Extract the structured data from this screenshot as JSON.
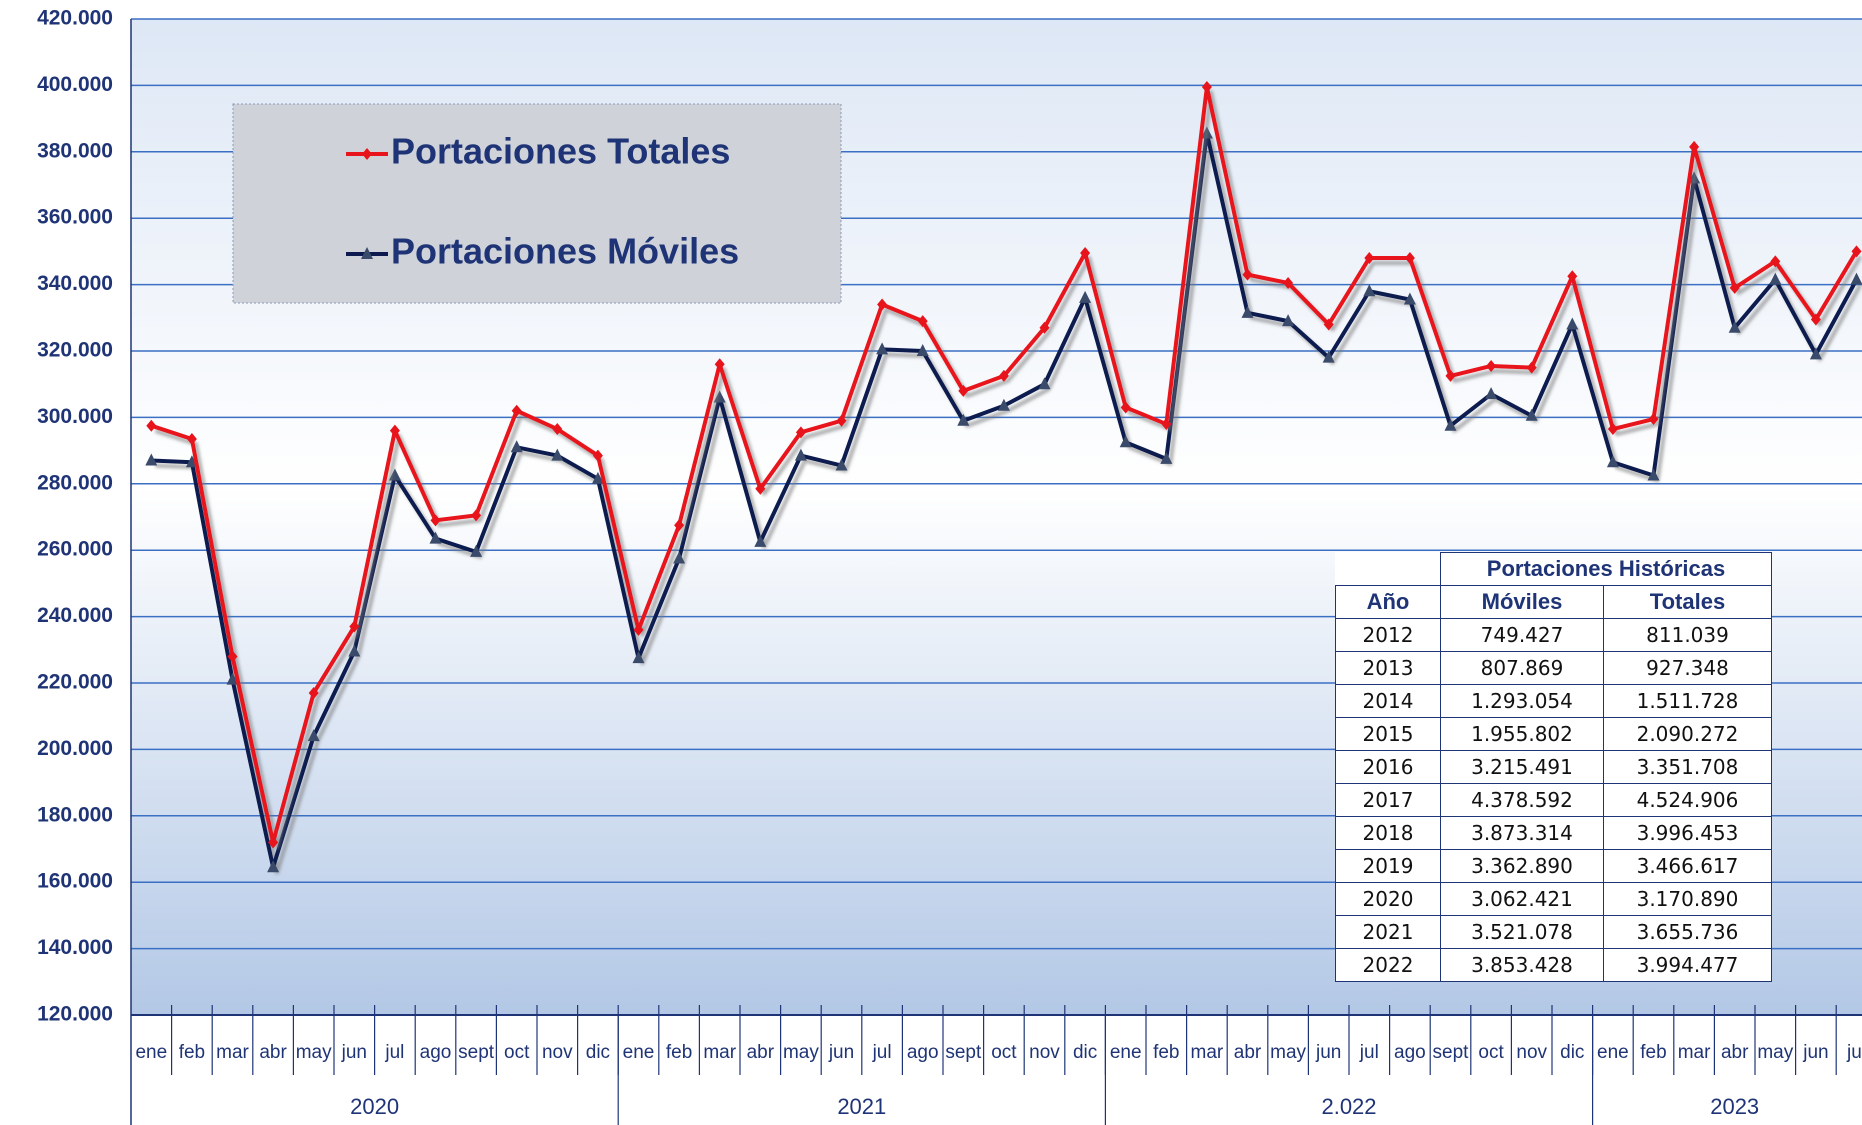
{
  "chart_data": {
    "type": "line",
    "categories": [
      "ene",
      "feb",
      "mar",
      "abr",
      "may",
      "jun",
      "jul",
      "ago",
      "sept",
      "oct",
      "nov",
      "dic",
      "ene",
      "feb",
      "mar",
      "abr",
      "may",
      "jun",
      "jul",
      "ago",
      "sept",
      "oct",
      "nov",
      "dic",
      "ene",
      "feb",
      "mar",
      "abr",
      "may",
      "jun",
      "jul",
      "ago",
      "sept",
      "oct",
      "nov",
      "dic",
      "ene",
      "feb",
      "mar",
      "abr",
      "may",
      "jun",
      "jul"
    ],
    "groups": [
      "2020",
      "2021",
      "2.022",
      "2023"
    ],
    "group_sizes": [
      12,
      12,
      12,
      7
    ],
    "series": [
      {
        "name": "Portaciones Totales",
        "color": "#e8141c",
        "marker": "diamond",
        "values": [
          297500,
          293500,
          228000,
          172000,
          217000,
          237000,
          296000,
          269000,
          270500,
          302000,
          296500,
          288500,
          236000,
          267500,
          316000,
          278500,
          295500,
          299000,
          334000,
          329000,
          308000,
          312500,
          327000,
          349500,
          303000,
          298000,
          399500,
          343000,
          340500,
          328000,
          348000,
          348000,
          312500,
          315500,
          315000,
          342500,
          296500,
          299500,
          381500,
          339000,
          347000,
          329500,
          350000
        ]
      },
      {
        "name": "Portaciones Móviles",
        "color": "#0d1a4f",
        "marker": "triangle",
        "values": [
          287000,
          286500,
          221000,
          164500,
          204000,
          229500,
          282500,
          263500,
          259500,
          291000,
          288500,
          281500,
          227500,
          257500,
          306000,
          262500,
          288500,
          285500,
          320500,
          320000,
          299000,
          303500,
          310000,
          336000,
          292500,
          287500,
          385500,
          331500,
          329000,
          318000,
          338000,
          335500,
          297500,
          307000,
          300500,
          328000,
          286500,
          282500,
          372000,
          327000,
          341500,
          319000,
          341500
        ]
      }
    ],
    "ylim": [
      120000,
      420000
    ],
    "yticks": [
      {
        "value": 120000,
        "label": "120.000"
      },
      {
        "value": 140000,
        "label": "140.000"
      },
      {
        "value": 160000,
        "label": "160.000"
      },
      {
        "value": 180000,
        "label": "180.000"
      },
      {
        "value": 200000,
        "label": "200.000"
      },
      {
        "value": 220000,
        "label": "220.000"
      },
      {
        "value": 240000,
        "label": "240.000"
      },
      {
        "value": 260000,
        "label": "260.000"
      },
      {
        "value": 280000,
        "label": "280.000"
      },
      {
        "value": 300000,
        "label": "300.000"
      },
      {
        "value": 320000,
        "label": "320.000"
      },
      {
        "value": 340000,
        "label": "340.000"
      },
      {
        "value": 360000,
        "label": "360.000"
      },
      {
        "value": 380000,
        "label": "380.000"
      },
      {
        "value": 400000,
        "label": "400.000"
      },
      {
        "value": 420000,
        "label": "420.000"
      }
    ],
    "grid": true,
    "grid_color": "#3b6fc4",
    "legend": "upper left"
  },
  "table": {
    "title": "Portaciones Históricas",
    "columns": [
      "Año",
      "Móviles",
      "Totales"
    ],
    "rows": [
      [
        "2012",
        "749.427",
        "811.039"
      ],
      [
        "2013",
        "807.869",
        "927.348"
      ],
      [
        "2014",
        "1.293.054",
        "1.511.728"
      ],
      [
        "2015",
        "1.955.802",
        "2.090.272"
      ],
      [
        "2016",
        "3.215.491",
        "3.351.708"
      ],
      [
        "2017",
        "4.378.592",
        "4.524.906"
      ],
      [
        "2018",
        "3.873.314",
        "3.996.453"
      ],
      [
        "2019",
        "3.362.890",
        "3.466.617"
      ],
      [
        "2020",
        "3.062.421",
        "3.170.890"
      ],
      [
        "2021",
        "3.521.078",
        "3.655.736"
      ],
      [
        "2022",
        "3.853.428",
        "3.994.477"
      ]
    ]
  }
}
